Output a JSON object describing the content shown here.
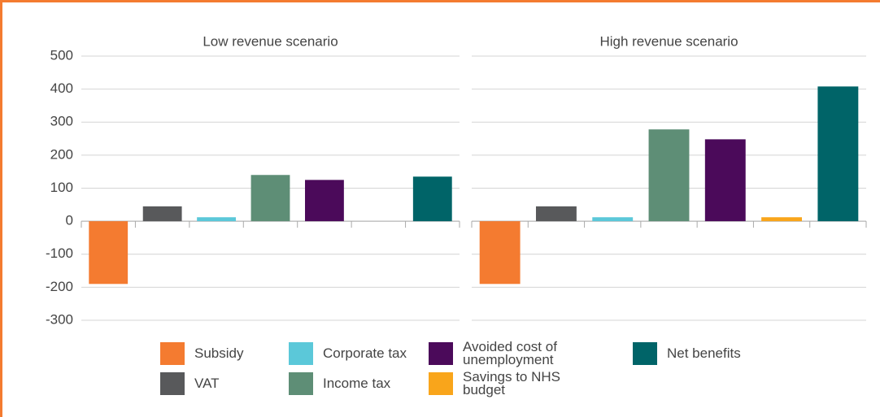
{
  "chart_data": {
    "type": "bar",
    "categories": [
      "Low revenue scenario",
      "High revenue scenario"
    ],
    "series": [
      {
        "name": "Subsidy",
        "color": "#f47b30",
        "values": [
          -190,
          -190
        ]
      },
      {
        "name": "VAT",
        "color": "#58595b",
        "values": [
          45,
          45
        ]
      },
      {
        "name": "Corporate tax",
        "color": "#5bc8d9",
        "values": [
          12,
          12
        ]
      },
      {
        "name": "Income tax",
        "color": "#5e8e76",
        "values": [
          140,
          278
        ]
      },
      {
        "name": "Avoided cost of unemployment",
        "color": "#4b0a5a",
        "values": [
          125,
          248
        ]
      },
      {
        "name": "Savings to NHS budget",
        "color": "#f9a51b",
        "values": [
          0,
          12
        ]
      },
      {
        "name": "Net benefits",
        "color": "#006468",
        "values": [
          135,
          408
        ]
      }
    ],
    "ylim": [
      -300,
      500
    ],
    "yticks": [
      -300,
      -200,
      -100,
      0,
      100,
      200,
      300,
      400,
      500
    ],
    "grid": true
  }
}
